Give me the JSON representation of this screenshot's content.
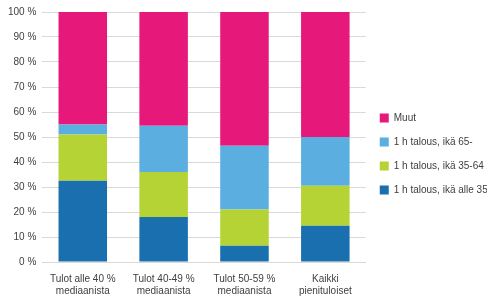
{
  "chart_data": {
    "type": "bar",
    "stacked": true,
    "categories": [
      "Tulot alle 40 % mediaanista",
      "Tulot 40-49 % mediaanista",
      "Tulot 50-59 % mediaanista",
      "Kaikki pienituloiset"
    ],
    "series": [
      {
        "name": "1 h talous, ikä alle 35",
        "color": "#1a6faf",
        "values": [
          32.5,
          18,
          6.5,
          14.5
        ]
      },
      {
        "name": "1 h talous, ikä 35-64",
        "color": "#b5d334",
        "values": [
          18.5,
          18,
          14.5,
          16
        ]
      },
      {
        "name": "1 h talous, ikä 65-",
        "color": "#5aaee0",
        "values": [
          4,
          18.5,
          25.5,
          19.5
        ]
      },
      {
        "name": "Muut",
        "color": "#e6187a",
        "values": [
          45,
          45.5,
          53.5,
          50
        ]
      }
    ],
    "ylim": [
      0,
      100
    ],
    "yticks": [
      {
        "value": 0,
        "label": "0 %"
      },
      {
        "value": 10,
        "label": "10 %"
      },
      {
        "value": 20,
        "label": "20 %"
      },
      {
        "value": 30,
        "label": "30 %"
      },
      {
        "value": 40,
        "label": "40 %"
      },
      {
        "value": 50,
        "label": "50 %"
      },
      {
        "value": 60,
        "label": "60 %"
      },
      {
        "value": 70,
        "label": "70 %"
      },
      {
        "value": 80,
        "label": "80 %"
      },
      {
        "value": 90,
        "label": "90 %"
      },
      {
        "value": 100,
        "label": "100 %"
      }
    ],
    "grid": true,
    "legend": "right"
  }
}
